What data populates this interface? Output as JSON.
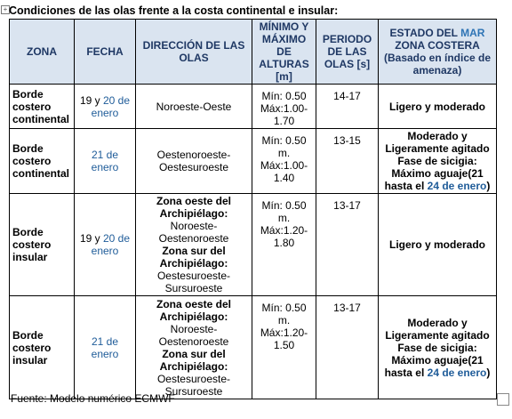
{
  "title": "Condiciones de las olas frente a la costa continental e insular:",
  "table": {
    "header": [
      [
        [
          {
            "text": "ZONA"
          }
        ]
      ],
      [
        [
          {
            "text": "FECHA"
          }
        ]
      ],
      [
        [
          {
            "text": "DIRECCIÓN DE LAS OLAS"
          }
        ]
      ],
      [
        [
          {
            "text": "MÍNIMO Y MÁXIMO DE ALTURAS [m]"
          }
        ]
      ],
      [
        [
          {
            "text": "PERIODO DE LAS OLAS [s]"
          }
        ]
      ],
      [
        [
          {
            "text": "ESTADO DEL "
          },
          {
            "text": "MAR",
            "color": "#2e74b5"
          },
          {
            "text": " ZONA COSTERA (Basado en índice de amenaza)"
          }
        ]
      ]
    ],
    "rows": [
      [
        [
          [
            {
              "text": "Borde costero continental",
              "bold": true
            }
          ]
        ],
        [
          [
            {
              "text": "19 y "
            },
            {
              "text": "20 de enero",
              "color": "#1f5c99"
            }
          ]
        ],
        [
          [
            {
              "text": "Noroeste-Oeste"
            }
          ]
        ],
        [
          [
            {
              "text": "Mín: 0.50 Máx:1.00-1.70"
            }
          ]
        ],
        [
          [
            {
              "text": "14-17"
            }
          ]
        ],
        [
          [
            {
              "text": "Ligero y moderado",
              "bold": true
            }
          ]
        ]
      ],
      [
        [
          [
            {
              "text": "Borde costero continental",
              "bold": true
            }
          ]
        ],
        [
          [
            {
              "text": "21 de enero",
              "color": "#1f5c99"
            }
          ]
        ],
        [
          [
            {
              "text": "Oestenoroeste-Oestesuroeste"
            }
          ]
        ],
        [
          [
            {
              "text": "Mín: 0.50 m. Máx:1.00-1.40"
            }
          ]
        ],
        [
          [
            {
              "text": "13-15"
            }
          ]
        ],
        [
          [
            {
              "text": "Moderado y Ligeramente agitado Fase de sicigia: Máximo aguaje(21 hasta el ",
              "bold": true
            },
            {
              "text": "24 de enero",
              "bold": true,
              "color": "#1f5c99"
            },
            {
              "text": ")",
              "bold": true
            }
          ]
        ]
      ],
      [
        [
          [
            {
              "text": "Borde costero insular",
              "bold": true
            }
          ]
        ],
        [
          [
            {
              "text": "19 y "
            },
            {
              "text": "20 de enero",
              "color": "#1f5c99"
            }
          ]
        ],
        [
          [
            {
              "text": "Zona  oeste del Archipiélago:",
              "bold": true
            }
          ],
          [
            {
              "text": "Noroeste-Oestenoroeste"
            }
          ],
          [
            {
              "text": "Zona sur del Archipiélago:",
              "bold": true
            }
          ],
          [
            {
              "text": "Oestesuroeste-Sursuroeste"
            }
          ]
        ],
        [
          [
            {
              "text": "Mín: 0.50 m. Máx:1.20-1.80"
            }
          ]
        ],
        [
          [
            {
              "text": "13-17"
            }
          ]
        ],
        [
          [
            {
              "text": "Ligero y moderado",
              "bold": true
            }
          ]
        ]
      ],
      [
        [
          [
            {
              "text": "Borde costero insular",
              "bold": true
            }
          ]
        ],
        [
          [
            {
              "text": "21 de enero",
              "color": "#1f5c99"
            }
          ]
        ],
        [
          [
            {
              "text": "Zona  oeste del Archipiélago:",
              "bold": true
            }
          ],
          [
            {
              "text": "Noroeste-Oestenoroeste"
            }
          ],
          [
            {
              "text": "Zona sur del Archipiélago:",
              "bold": true
            }
          ],
          [
            {
              "text": "Oestesuroeste-Sursuroeste"
            }
          ]
        ],
        [
          [
            {
              "text": "Mín: 0.50 m. Máx:1.20-1.50"
            }
          ]
        ],
        [
          [
            {
              "text": "13-17"
            }
          ]
        ],
        [
          [
            {
              "text": "Moderado y Ligeramente agitado Fase de sicigia: Máximo aguaje(21 hasta el ",
              "bold": true
            },
            {
              "text": "24 de enero",
              "bold": true,
              "color": "#1f5c99"
            },
            {
              "text": ")",
              "bold": true
            }
          ]
        ]
      ]
    ]
  },
  "footer": "Fuente: Modelo numérico ECMWF"
}
